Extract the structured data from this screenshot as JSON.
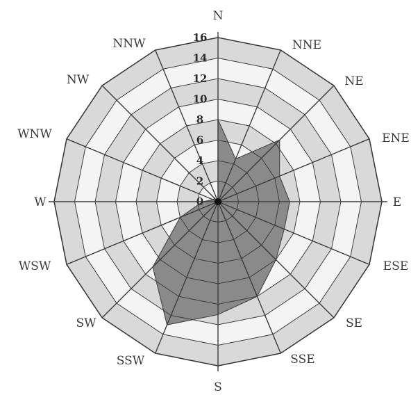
{
  "chart_data": {
    "type": "radar",
    "title": "",
    "directions": [
      "N",
      "NNE",
      "NE",
      "ENE",
      "E",
      "ESE",
      "SE",
      "SSE",
      "S",
      "SSW",
      "SW",
      "WSW",
      "W",
      "WNW",
      "NW",
      "NNW"
    ],
    "values": [
      8,
      4.5,
      8.5,
      6.5,
      7,
      7,
      8,
      10,
      11,
      13,
      9,
      4,
      1.5,
      0.5,
      0.5,
      0
    ],
    "rlim": [
      0,
      16
    ],
    "ticks": [
      "16",
      "14",
      "12",
      "10",
      "8",
      "6",
      "4",
      "2",
      "0"
    ],
    "colors": {
      "fill": "#8a8a8a",
      "ring_band_light": "#f4f4f4",
      "ring_band_dark": "#d9d9d9",
      "grid_line": "#3c3c3c",
      "spoke": "#3c3c3c"
    }
  }
}
